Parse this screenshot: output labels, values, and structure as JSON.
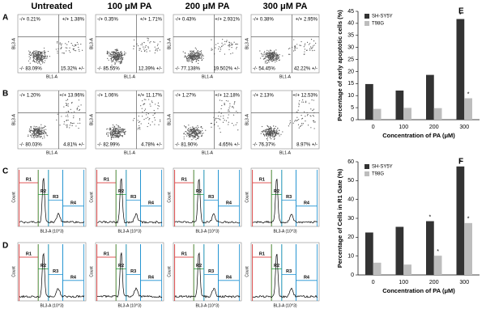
{
  "column_headers": [
    "Untreated",
    "100 μM PA",
    "200 μM PA",
    "300 μM PA"
  ],
  "panel_labels": [
    "A",
    "B",
    "C",
    "D",
    "E",
    "F"
  ],
  "flow_plots": {
    "x_label": "BL1-A",
    "y_label": "BL3-A",
    "rows": [
      [
        {
          "ul": "-/+ 0.21%",
          "ur": "+/+ 1.38%",
          "ll": "-/- 83.09%",
          "lr": "15.32% +/-"
        },
        {
          "ul": "-/+ 0.35%",
          "ur": "+/+ 1.71%",
          "ll": "-/- 85.55%",
          "lr": "12.39% +/-"
        },
        {
          "ul": "-/+ 0.43%",
          "ur": "+/+ 2.931%",
          "ll": "-/- 77.138%",
          "lr": "19.502% +/-"
        },
        {
          "ul": "-/+ 0.38%",
          "ur": "+/+ 2.95%",
          "ll": "-/- 54.45%",
          "lr": "42.22% +/-"
        }
      ],
      [
        {
          "ul": "-/+ 1.20%",
          "ur": "+/+ 13.96%",
          "ll": "-/- 80.03%",
          "lr": "4.81% +/-"
        },
        {
          "ul": "-/+ 1.06%",
          "ur": "+/+ 11.17%",
          "ll": "-/- 82.99%",
          "lr": "4.78% +/-"
        },
        {
          "ul": "-/+ 1.27%",
          "ur": "+/+ 12.18%",
          "ll": "-/- 81.90%",
          "lr": "4.65% +/-"
        },
        {
          "ul": "-/+ 2.13%",
          "ur": "+/+ 12.53%",
          "ll": "-/- 76.37%",
          "lr": "8.97% +/-"
        }
      ]
    ]
  },
  "histograms": {
    "gates": [
      "R1",
      "R2",
      "R3",
      "R4"
    ],
    "y_label": "Count",
    "x_label": "BL3-A (10^3)"
  },
  "chart_data": [
    {
      "type": "bar",
      "x_label": "Concentration of PA (μM)",
      "y_label": "Percentage of early apoptotic cells (%)",
      "categories": [
        "0",
        "100",
        "200",
        "300"
      ],
      "series": [
        {
          "name": "SH-SY5Y",
          "color": "#333333",
          "values": [
            14.8,
            12.1,
            18.6,
            41.8
          ],
          "labels": [
            null,
            null,
            null,
            "*"
          ]
        },
        {
          "name": "T98G",
          "color": "#bdbdbd",
          "values": [
            4.5,
            4.9,
            4.8,
            8.9
          ],
          "labels": [
            null,
            null,
            null,
            "*"
          ]
        }
      ],
      "ylim": [
        0,
        45
      ],
      "yticks": [
        0,
        5,
        10,
        15,
        20,
        25,
        30,
        35,
        40,
        45
      ],
      "grid": false,
      "legend": "upper-left"
    },
    {
      "type": "bar",
      "x_label": "Concentration of PA (μM)",
      "y_label": "Percentage of Cells in R1 Gate (%)",
      "categories": [
        "0",
        "100",
        "200",
        "300"
      ],
      "series": [
        {
          "name": "SH-SY5Y",
          "color": "#333333",
          "values": [
            22.5,
            25.5,
            28.5,
            57.5
          ],
          "labels": [
            null,
            null,
            "*",
            "*"
          ]
        },
        {
          "name": "T98G",
          "color": "#bdbdbd",
          "values": [
            6.5,
            5.5,
            10.2,
            27.5
          ],
          "labels": [
            null,
            null,
            "*",
            "*"
          ]
        }
      ],
      "ylim": [
        0,
        60
      ],
      "yticks": [
        0,
        10,
        20,
        30,
        40,
        50,
        60
      ],
      "grid": false,
      "legend": "upper-left"
    }
  ]
}
